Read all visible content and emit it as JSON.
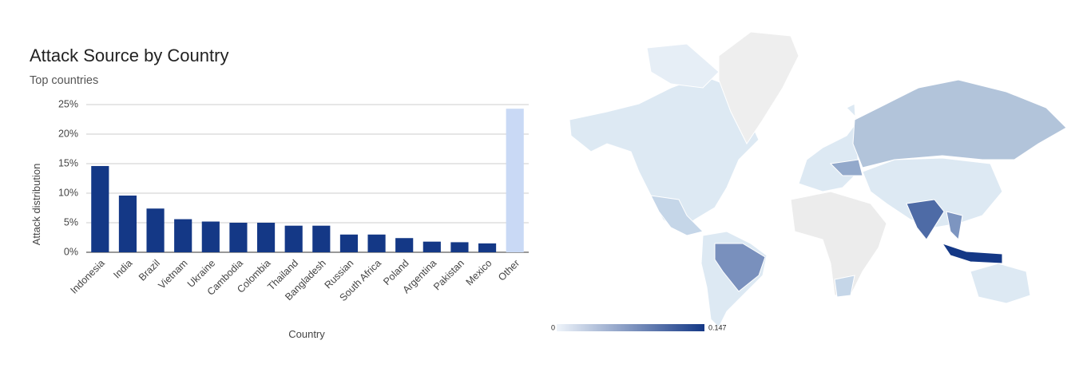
{
  "chart_data": {
    "type": "bar",
    "title": "Attack Source by Country",
    "subtitle": "Top countries",
    "x_label": "Country",
    "y_label": "Attack distribution",
    "categories": [
      "Indonesia",
      "India",
      "Brazil",
      "Vietnam",
      "Ukraine",
      "Cambodia",
      "Colombia",
      "Thailand",
      "Bangladesh",
      "Russian",
      "South Africa",
      "Poland",
      "Argentina",
      "Pakistan",
      "Mexico",
      "Other"
    ],
    "values": [
      14.6,
      9.6,
      7.4,
      5.6,
      5.2,
      5.0,
      5.0,
      4.5,
      4.5,
      3.0,
      3.0,
      2.4,
      1.8,
      1.7,
      1.5,
      24.3
    ],
    "colors": [
      "#143886",
      "#143886",
      "#143886",
      "#143886",
      "#143886",
      "#143886",
      "#143886",
      "#143886",
      "#143886",
      "#143886",
      "#143886",
      "#143886",
      "#143886",
      "#143886",
      "#143886",
      "#c9d9f5"
    ],
    "ylim": [
      0,
      25
    ],
    "yticks": [
      {
        "value": 0,
        "label": "0%"
      },
      {
        "value": 5,
        "label": "5%"
      },
      {
        "value": 10,
        "label": "10%"
      },
      {
        "value": 15,
        "label": "15%"
      },
      {
        "value": 20,
        "label": "20%"
      },
      {
        "value": 25,
        "label": "25%"
      }
    ],
    "grid": true
  },
  "map": {
    "legend_min": 0,
    "legend_max": 0.147,
    "color_low": "#eef4fa",
    "color_high": "#143886"
  }
}
